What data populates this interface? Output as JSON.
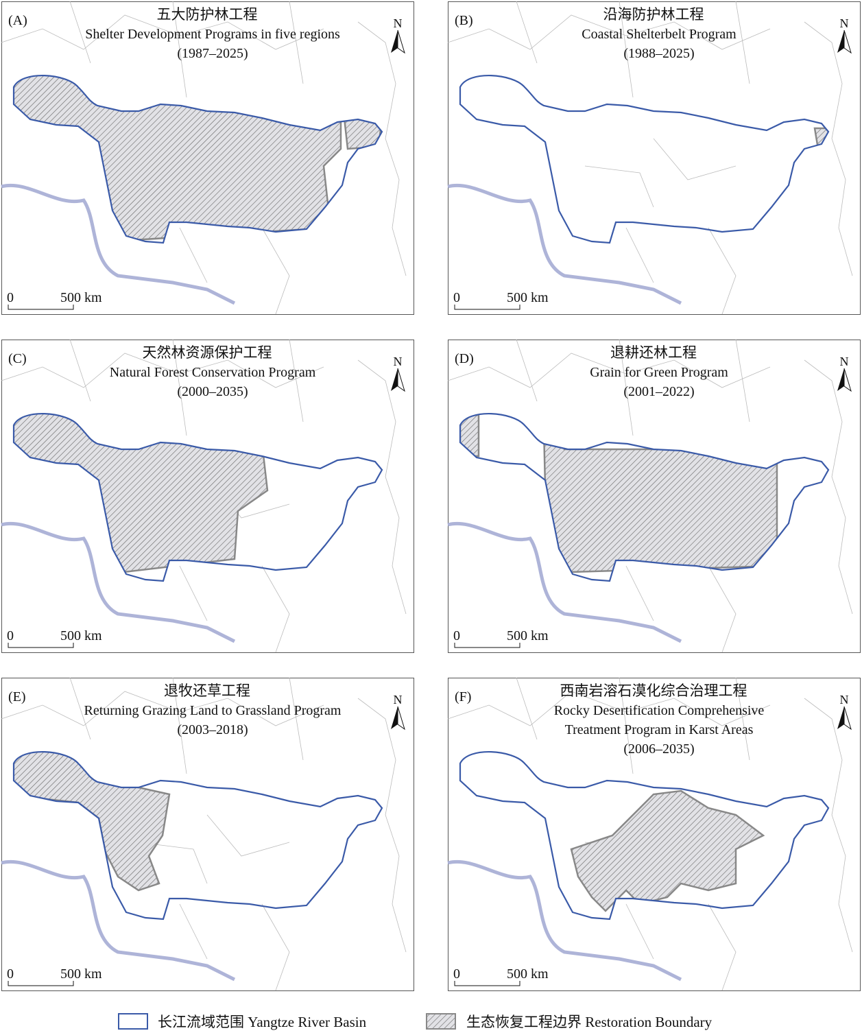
{
  "panels": [
    {
      "label": "(A)",
      "title_cn": "五大防护林工程",
      "title_en": [
        "Shelter Development Programs in five regions"
      ],
      "years": "(1987–2025)",
      "north": "N",
      "scale_start": "0",
      "scale_end": "500 km"
    },
    {
      "label": "(B)",
      "title_cn": "沿海防护林工程",
      "title_en": [
        "Coastal Shelterbelt Program"
      ],
      "years": "(1988–2025)",
      "north": "N",
      "scale_start": "0",
      "scale_end": "500 km"
    },
    {
      "label": "(C)",
      "title_cn": "天然林资源保护工程",
      "title_en": [
        "Natural Forest Conservation Program"
      ],
      "years": "(2000–2035)",
      "north": "N",
      "scale_start": "0",
      "scale_end": "500 km"
    },
    {
      "label": "(D)",
      "title_cn": "退耕还林工程",
      "title_en": [
        "Grain for Green Program"
      ],
      "years": "(2001–2022)",
      "north": "N",
      "scale_start": "0",
      "scale_end": "500 km"
    },
    {
      "label": "(E)",
      "title_cn": "退牧还草工程",
      "title_en": [
        "Returning Grazing Land to Grassland Program"
      ],
      "years": "(2003–2018)",
      "north": "N",
      "scale_start": "0",
      "scale_end": "500 km"
    },
    {
      "label": "(F)",
      "title_cn": "西南岩溶石漠化综合治理工程",
      "title_en": [
        "Rocky Desertification Comprehensive",
        "Treatment Program in Karst Areas"
      ],
      "years": "(2006–2035)",
      "north": "N",
      "scale_start": "0",
      "scale_end": "500 km"
    }
  ],
  "legend": {
    "basin": "长江流域范围 Yangtze River Basin",
    "restoration": "生态恢复工程边界 Restoration Boundary"
  }
}
